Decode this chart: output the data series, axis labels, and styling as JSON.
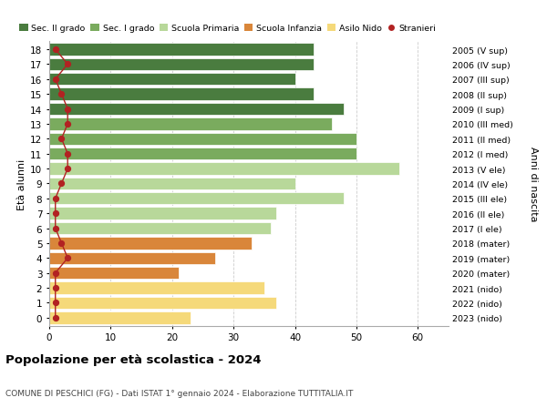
{
  "ages": [
    18,
    17,
    16,
    15,
    14,
    13,
    12,
    11,
    10,
    9,
    8,
    7,
    6,
    5,
    4,
    3,
    2,
    1,
    0
  ],
  "labels_right": [
    "2005 (V sup)",
    "2006 (IV sup)",
    "2007 (III sup)",
    "2008 (II sup)",
    "2009 (I sup)",
    "2010 (III med)",
    "2011 (II med)",
    "2012 (I med)",
    "2013 (V ele)",
    "2014 (IV ele)",
    "2015 (III ele)",
    "2016 (II ele)",
    "2017 (I ele)",
    "2018 (mater)",
    "2019 (mater)",
    "2020 (mater)",
    "2021 (nido)",
    "2022 (nido)",
    "2023 (nido)"
  ],
  "bar_values": [
    43,
    43,
    40,
    43,
    48,
    46,
    50,
    50,
    57,
    40,
    48,
    37,
    36,
    33,
    27,
    21,
    35,
    37,
    23
  ],
  "bar_colors": [
    "#4a7c3f",
    "#4a7c3f",
    "#4a7c3f",
    "#4a7c3f",
    "#4a7c3f",
    "#7aab5e",
    "#7aab5e",
    "#7aab5e",
    "#b8d89a",
    "#b8d89a",
    "#b8d89a",
    "#b8d89a",
    "#b8d89a",
    "#d9863a",
    "#d9863a",
    "#d9863a",
    "#f5d97a",
    "#f5d97a",
    "#f5d97a"
  ],
  "stranieri_values": [
    1,
    3,
    1,
    2,
    3,
    3,
    2,
    3,
    3,
    2,
    1,
    1,
    1,
    2,
    3,
    1,
    1,
    1,
    1
  ],
  "legend_labels": [
    "Sec. II grado",
    "Sec. I grado",
    "Scuola Primaria",
    "Scuola Infanzia",
    "Asilo Nido",
    "Stranieri"
  ],
  "legend_colors": [
    "#4a7c3f",
    "#7aab5e",
    "#b8d89a",
    "#d9863a",
    "#f5d97a",
    "#b22222"
  ],
  "ylabel": "Età alunni",
  "ylabel_right": "Anni di nascita",
  "title": "Popolazione per età scolastica - 2024",
  "subtitle": "COMUNE DI PESCHICI (FG) - Dati ISTAT 1° gennaio 2024 - Elaborazione TUTTITALIA.IT",
  "xlim": [
    0,
    65
  ],
  "xticks": [
    0,
    10,
    20,
    30,
    40,
    50,
    60
  ],
  "background_color": "#ffffff",
  "grid_color": "#cccccc"
}
